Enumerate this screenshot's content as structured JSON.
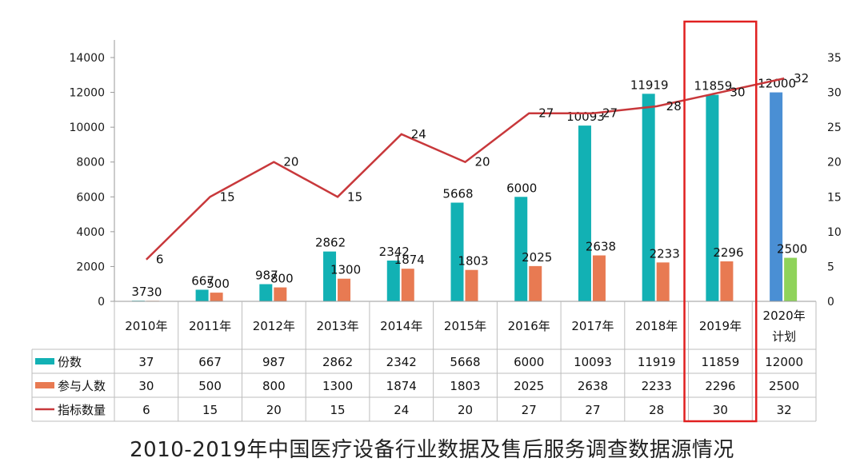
{
  "caption": "2010-2019年中国医疗设备行业数据及售后服务调查数据源情况",
  "colors": {
    "bar1": "#12b1b4",
    "bar2": "#e87a52",
    "bar1_plan": "#4a8fd4",
    "bar2_plan": "#8fd35a",
    "line": "#c8383b",
    "highlight": "#e02020",
    "axis": "#999999",
    "grid": "#bdbdbd"
  },
  "chart_data": {
    "type": "bar",
    "categories": [
      "2010年",
      "2011年",
      "2012年",
      "2013年",
      "2014年",
      "2015年",
      "2016年",
      "2017年",
      "2018年",
      "2019年",
      "2020年计划"
    ],
    "series": [
      {
        "name": "份数",
        "type": "bar",
        "axis": "left",
        "values": [
          37,
          667,
          987,
          2862,
          2342,
          5668,
          6000,
          10093,
          11919,
          11859,
          12000
        ]
      },
      {
        "name": "参与人数",
        "type": "bar",
        "axis": "left",
        "values": [
          30,
          500,
          800,
          1300,
          1874,
          1803,
          2025,
          2638,
          2233,
          2296,
          2500
        ]
      },
      {
        "name": "指标数量",
        "type": "line",
        "axis": "right",
        "values": [
          6,
          15,
          20,
          15,
          24,
          20,
          27,
          27,
          28,
          30,
          32
        ]
      }
    ],
    "y_left": {
      "min": 0,
      "max": 14000,
      "ticks": [
        0,
        2000,
        4000,
        6000,
        8000,
        10000,
        12000,
        14000
      ]
    },
    "y_right": {
      "min": 0,
      "max": 35,
      "ticks": [
        0,
        5,
        10,
        15,
        20,
        25,
        30,
        35
      ]
    },
    "highlight_category": "2019年",
    "data_table": true,
    "legend": "in-table"
  }
}
